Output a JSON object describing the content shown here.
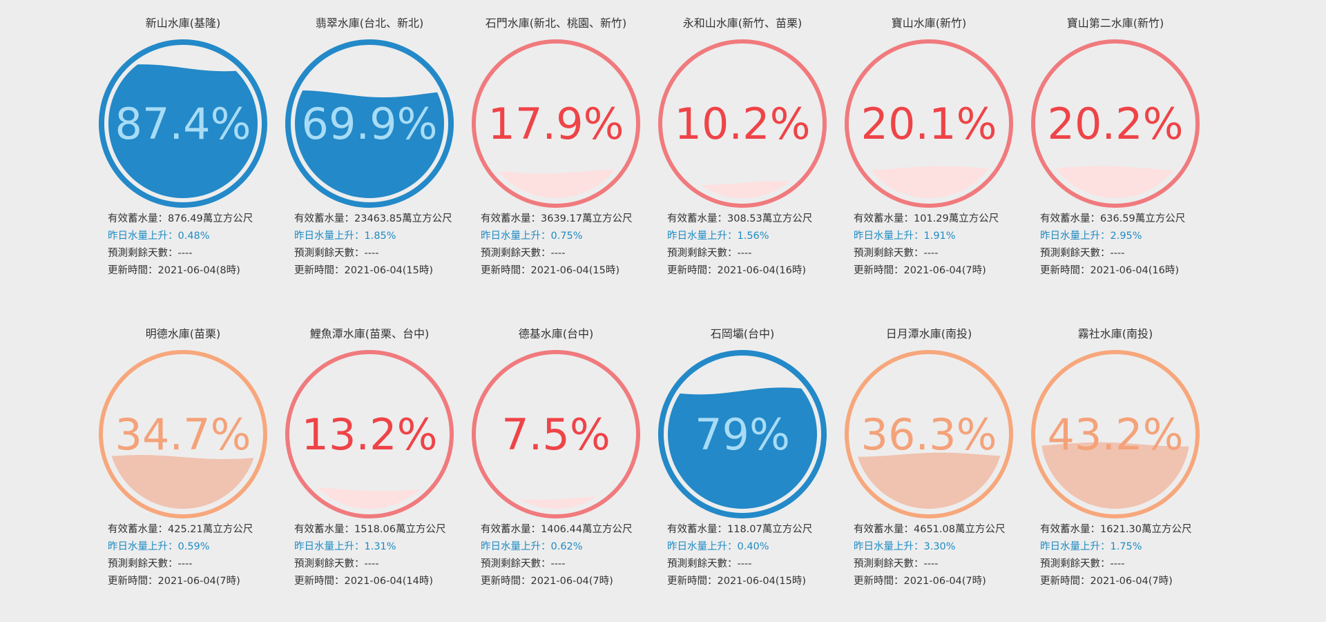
{
  "colors": {
    "blue": "#2389c8",
    "blue_text": "#a8dcf6",
    "red": "#f07a7d",
    "red_text": "#ee4448",
    "red_fill": "#fde0e0",
    "orange": "#f7a77c",
    "orange_text": "#f4a27a",
    "orange_fill": "#f0c2b0",
    "rise_text": "#1e8bc3"
  },
  "reservoirs": [
    {
      "name": "新山水庫(基隆)",
      "percent_label": "87.4%",
      "percent": 87.4,
      "status": "blue",
      "storage": "有效蓄水量：876.49萬立方公尺",
      "rise": "昨日水量上升：0.48%",
      "days": "預測剩餘天數：----",
      "updated": "更新時間：2021-06-04(8時)"
    },
    {
      "name": "翡翠水庫(台北、新北)",
      "percent_label": "69.9%",
      "percent": 69.9,
      "status": "blue",
      "storage": "有效蓄水量：23463.85萬立方公尺",
      "rise": "昨日水量上升：1.85%",
      "days": "預測剩餘天數：----",
      "updated": "更新時間：2021-06-04(15時)"
    },
    {
      "name": "石門水庫(新北、桃園、新竹)",
      "percent_label": "17.9%",
      "percent": 17.9,
      "status": "red",
      "storage": "有效蓄水量：3639.17萬立方公尺",
      "rise": "昨日水量上升：0.75%",
      "days": "預測剩餘天數：----",
      "updated": "更新時間：2021-06-04(15時)"
    },
    {
      "name": "永和山水庫(新竹、苗栗)",
      "percent_label": "10.2%",
      "percent": 10.2,
      "status": "red",
      "storage": "有效蓄水量：308.53萬立方公尺",
      "rise": "昨日水量上升：1.56%",
      "days": "預測剩餘天數：----",
      "updated": "更新時間：2021-06-04(16時)"
    },
    {
      "name": "寶山水庫(新竹)",
      "percent_label": "20.1%",
      "percent": 20.1,
      "status": "red",
      "storage": "有效蓄水量：101.29萬立方公尺",
      "rise": "昨日水量上升：1.91%",
      "days": "預測剩餘天數：----",
      "updated": "更新時間：2021-06-04(7時)"
    },
    {
      "name": "寶山第二水庫(新竹)",
      "percent_label": "20.2%",
      "percent": 20.2,
      "status": "red",
      "storage": "有效蓄水量：636.59萬立方公尺",
      "rise": "昨日水量上升：2.95%",
      "days": "預測剩餘天數：----",
      "updated": "更新時間：2021-06-04(16時)"
    },
    {
      "name": "明德水庫(苗栗)",
      "percent_label": "34.7%",
      "percent": 34.7,
      "status": "orange",
      "storage": "有效蓄水量：425.21萬立方公尺",
      "rise": "昨日水量上升：0.59%",
      "days": "預測剩餘天數：----",
      "updated": "更新時間：2021-06-04(7時)"
    },
    {
      "name": "鯉魚潭水庫(苗栗、台中)",
      "percent_label": "13.2%",
      "percent": 13.2,
      "status": "red",
      "storage": "有效蓄水量：1518.06萬立方公尺",
      "rise": "昨日水量上升：1.31%",
      "days": "預測剩餘天數：----",
      "updated": "更新時間：2021-06-04(14時)"
    },
    {
      "name": "德基水庫(台中)",
      "percent_label": "7.5%",
      "percent": 7.5,
      "status": "red",
      "storage": "有效蓄水量：1406.44萬立方公尺",
      "rise": "昨日水量上升：0.62%",
      "days": "預測剩餘天數：----",
      "updated": "更新時間：2021-06-04(7時)"
    },
    {
      "name": "石岡壩(台中)",
      "percent_label": "79%",
      "percent": 79,
      "status": "blue",
      "storage": "有效蓄水量：118.07萬立方公尺",
      "rise": "昨日水量上升：0.40%",
      "days": "預測剩餘天數：----",
      "updated": "更新時間：2021-06-04(15時)"
    },
    {
      "name": "日月潭水庫(南投)",
      "percent_label": "36.3%",
      "percent": 36.3,
      "status": "orange",
      "storage": "有效蓄水量：4651.08萬立方公尺",
      "rise": "昨日水量上升：3.30%",
      "days": "預測剩餘天數：----",
      "updated": "更新時間：2021-06-04(7時)"
    },
    {
      "name": "霧社水庫(南投)",
      "percent_label": "43.2%",
      "percent": 43.2,
      "status": "orange",
      "storage": "有效蓄水量：1621.30萬立方公尺",
      "rise": "昨日水量上升：1.75%",
      "days": "預測剩餘天數：----",
      "updated": "更新時間：2021-06-04(7時)"
    }
  ]
}
